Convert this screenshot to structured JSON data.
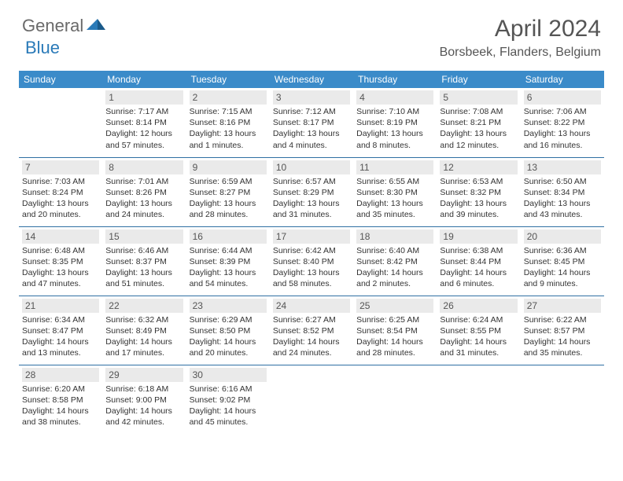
{
  "logo": {
    "general": "General",
    "blue": "Blue"
  },
  "title": "April 2024",
  "location": "Borsbeek, Flanders, Belgium",
  "colors": {
    "header_bg": "#3b8bc9",
    "header_text": "#ffffff",
    "daynum_bg": "#eaeaea",
    "border": "#2f6fa3",
    "logo_gray": "#6a6a6a",
    "logo_blue": "#2a7ab8"
  },
  "weekdays": [
    "Sunday",
    "Monday",
    "Tuesday",
    "Wednesday",
    "Thursday",
    "Friday",
    "Saturday"
  ],
  "weeks": [
    [
      null,
      {
        "d": "1",
        "sr": "7:17 AM",
        "ss": "8:14 PM",
        "dl": "12 hours and 57 minutes."
      },
      {
        "d": "2",
        "sr": "7:15 AM",
        "ss": "8:16 PM",
        "dl": "13 hours and 1 minutes."
      },
      {
        "d": "3",
        "sr": "7:12 AM",
        "ss": "8:17 PM",
        "dl": "13 hours and 4 minutes."
      },
      {
        "d": "4",
        "sr": "7:10 AM",
        "ss": "8:19 PM",
        "dl": "13 hours and 8 minutes."
      },
      {
        "d": "5",
        "sr": "7:08 AM",
        "ss": "8:21 PM",
        "dl": "13 hours and 12 minutes."
      },
      {
        "d": "6",
        "sr": "7:06 AM",
        "ss": "8:22 PM",
        "dl": "13 hours and 16 minutes."
      }
    ],
    [
      {
        "d": "7",
        "sr": "7:03 AM",
        "ss": "8:24 PM",
        "dl": "13 hours and 20 minutes."
      },
      {
        "d": "8",
        "sr": "7:01 AM",
        "ss": "8:26 PM",
        "dl": "13 hours and 24 minutes."
      },
      {
        "d": "9",
        "sr": "6:59 AM",
        "ss": "8:27 PM",
        "dl": "13 hours and 28 minutes."
      },
      {
        "d": "10",
        "sr": "6:57 AM",
        "ss": "8:29 PM",
        "dl": "13 hours and 31 minutes."
      },
      {
        "d": "11",
        "sr": "6:55 AM",
        "ss": "8:30 PM",
        "dl": "13 hours and 35 minutes."
      },
      {
        "d": "12",
        "sr": "6:53 AM",
        "ss": "8:32 PM",
        "dl": "13 hours and 39 minutes."
      },
      {
        "d": "13",
        "sr": "6:50 AM",
        "ss": "8:34 PM",
        "dl": "13 hours and 43 minutes."
      }
    ],
    [
      {
        "d": "14",
        "sr": "6:48 AM",
        "ss": "8:35 PM",
        "dl": "13 hours and 47 minutes."
      },
      {
        "d": "15",
        "sr": "6:46 AM",
        "ss": "8:37 PM",
        "dl": "13 hours and 51 minutes."
      },
      {
        "d": "16",
        "sr": "6:44 AM",
        "ss": "8:39 PM",
        "dl": "13 hours and 54 minutes."
      },
      {
        "d": "17",
        "sr": "6:42 AM",
        "ss": "8:40 PM",
        "dl": "13 hours and 58 minutes."
      },
      {
        "d": "18",
        "sr": "6:40 AM",
        "ss": "8:42 PM",
        "dl": "14 hours and 2 minutes."
      },
      {
        "d": "19",
        "sr": "6:38 AM",
        "ss": "8:44 PM",
        "dl": "14 hours and 6 minutes."
      },
      {
        "d": "20",
        "sr": "6:36 AM",
        "ss": "8:45 PM",
        "dl": "14 hours and 9 minutes."
      }
    ],
    [
      {
        "d": "21",
        "sr": "6:34 AM",
        "ss": "8:47 PM",
        "dl": "14 hours and 13 minutes."
      },
      {
        "d": "22",
        "sr": "6:32 AM",
        "ss": "8:49 PM",
        "dl": "14 hours and 17 minutes."
      },
      {
        "d": "23",
        "sr": "6:29 AM",
        "ss": "8:50 PM",
        "dl": "14 hours and 20 minutes."
      },
      {
        "d": "24",
        "sr": "6:27 AM",
        "ss": "8:52 PM",
        "dl": "14 hours and 24 minutes."
      },
      {
        "d": "25",
        "sr": "6:25 AM",
        "ss": "8:54 PM",
        "dl": "14 hours and 28 minutes."
      },
      {
        "d": "26",
        "sr": "6:24 AM",
        "ss": "8:55 PM",
        "dl": "14 hours and 31 minutes."
      },
      {
        "d": "27",
        "sr": "6:22 AM",
        "ss": "8:57 PM",
        "dl": "14 hours and 35 minutes."
      }
    ],
    [
      {
        "d": "28",
        "sr": "6:20 AM",
        "ss": "8:58 PM",
        "dl": "14 hours and 38 minutes."
      },
      {
        "d": "29",
        "sr": "6:18 AM",
        "ss": "9:00 PM",
        "dl": "14 hours and 42 minutes."
      },
      {
        "d": "30",
        "sr": "6:16 AM",
        "ss": "9:02 PM",
        "dl": "14 hours and 45 minutes."
      },
      null,
      null,
      null,
      null
    ]
  ],
  "labels": {
    "sunrise": "Sunrise:",
    "sunset": "Sunset:",
    "daylight": "Daylight:"
  }
}
